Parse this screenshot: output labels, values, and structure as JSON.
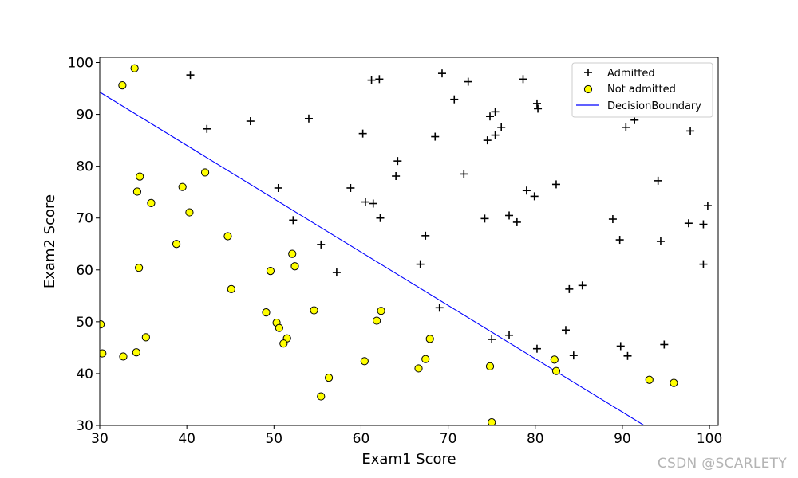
{
  "chart_data": {
    "type": "scatter",
    "title": "",
    "xlabel": "Exam1 Score",
    "ylabel": "Exam2 Score",
    "xlim": [
      30,
      101
    ],
    "ylim": [
      30,
      101
    ],
    "xticks": [
      30,
      40,
      50,
      60,
      70,
      80,
      90,
      100
    ],
    "yticks": [
      30,
      40,
      50,
      60,
      70,
      80,
      90,
      100
    ],
    "grid": false,
    "legend_position": "top-right",
    "series": [
      {
        "name": "Admitted",
        "marker": "plus",
        "color": "#000000",
        "points": [
          [
            40.4,
            97.6
          ],
          [
            61.2,
            96.6
          ],
          [
            62.1,
            96.8
          ],
          [
            69.3,
            97.9
          ],
          [
            72.3,
            96.3
          ],
          [
            78.6,
            96.8
          ],
          [
            70.7,
            92.9
          ],
          [
            42.3,
            87.2
          ],
          [
            47.3,
            88.7
          ],
          [
            54.0,
            89.2
          ],
          [
            74.8,
            89.6
          ],
          [
            75.4,
            90.5
          ],
          [
            80.2,
            92.1
          ],
          [
            80.3,
            91.1
          ],
          [
            76.1,
            87.5
          ],
          [
            75.4,
            86.0
          ],
          [
            74.5,
            85.0
          ],
          [
            60.2,
            86.3
          ],
          [
            68.5,
            85.7
          ],
          [
            90.4,
            87.5
          ],
          [
            91.4,
            88.9
          ],
          [
            97.8,
            86.8
          ],
          [
            64.2,
            81.0
          ],
          [
            64.0,
            78.1
          ],
          [
            71.8,
            78.5
          ],
          [
            94.1,
            77.2
          ],
          [
            82.4,
            76.5
          ],
          [
            50.5,
            75.8
          ],
          [
            58.8,
            75.8
          ],
          [
            79.0,
            75.3
          ],
          [
            79.9,
            74.2
          ],
          [
            60.5,
            73.1
          ],
          [
            61.4,
            72.8
          ],
          [
            52.2,
            69.6
          ],
          [
            62.2,
            70.0
          ],
          [
            74.2,
            69.9
          ],
          [
            77.0,
            70.5
          ],
          [
            88.9,
            69.8
          ],
          [
            97.6,
            69.0
          ],
          [
            99.3,
            68.8
          ],
          [
            99.8,
            72.4
          ],
          [
            77.9,
            69.2
          ],
          [
            67.4,
            66.6
          ],
          [
            89.7,
            65.8
          ],
          [
            94.4,
            65.5
          ],
          [
            55.4,
            64.9
          ],
          [
            66.8,
            61.1
          ],
          [
            99.3,
            61.1
          ],
          [
            57.2,
            59.5
          ],
          [
            69.0,
            52.7
          ],
          [
            83.9,
            56.3
          ],
          [
            85.4,
            57.0
          ],
          [
            83.5,
            48.4
          ],
          [
            77.0,
            47.4
          ],
          [
            75.0,
            46.6
          ],
          [
            80.2,
            44.8
          ],
          [
            84.4,
            43.5
          ],
          [
            89.8,
            45.3
          ],
          [
            90.6,
            43.4
          ],
          [
            94.8,
            45.6
          ]
        ]
      },
      {
        "name": "Not admitted",
        "marker": "circle",
        "color": "#ffff00",
        "edgecolor": "#000000",
        "points": [
          [
            34.0,
            98.9
          ],
          [
            32.6,
            95.6
          ],
          [
            34.6,
            78.0
          ],
          [
            34.3,
            75.1
          ],
          [
            35.9,
            72.9
          ],
          [
            39.5,
            76.0
          ],
          [
            40.3,
            71.1
          ],
          [
            42.1,
            78.8
          ],
          [
            38.8,
            65.0
          ],
          [
            44.7,
            66.5
          ],
          [
            34.5,
            60.4
          ],
          [
            45.1,
            56.3
          ],
          [
            49.6,
            59.8
          ],
          [
            52.1,
            63.1
          ],
          [
            52.4,
            60.7
          ],
          [
            49.1,
            51.8
          ],
          [
            50.3,
            49.8
          ],
          [
            50.6,
            48.8
          ],
          [
            51.5,
            46.8
          ],
          [
            51.1,
            45.8
          ],
          [
            54.6,
            52.2
          ],
          [
            61.8,
            50.2
          ],
          [
            62.3,
            52.1
          ],
          [
            67.9,
            46.7
          ],
          [
            67.4,
            42.8
          ],
          [
            66.6,
            41.0
          ],
          [
            60.4,
            42.4
          ],
          [
            56.3,
            39.2
          ],
          [
            55.4,
            35.6
          ],
          [
            74.8,
            41.4
          ],
          [
            75.0,
            30.6
          ],
          [
            82.2,
            42.7
          ],
          [
            82.4,
            40.5
          ],
          [
            93.1,
            38.8
          ],
          [
            95.9,
            38.2
          ],
          [
            30.1,
            49.5
          ],
          [
            30.3,
            43.9
          ],
          [
            32.7,
            43.3
          ],
          [
            34.2,
            44.1
          ],
          [
            35.3,
            47.0
          ]
        ]
      },
      {
        "name": "DecisionBoundary",
        "type": "line",
        "color": "#0000ff",
        "points": [
          [
            30.0,
            94.3
          ],
          [
            92.5,
            30.0
          ]
        ]
      }
    ]
  },
  "watermark": "CSDN @SCARLETY"
}
